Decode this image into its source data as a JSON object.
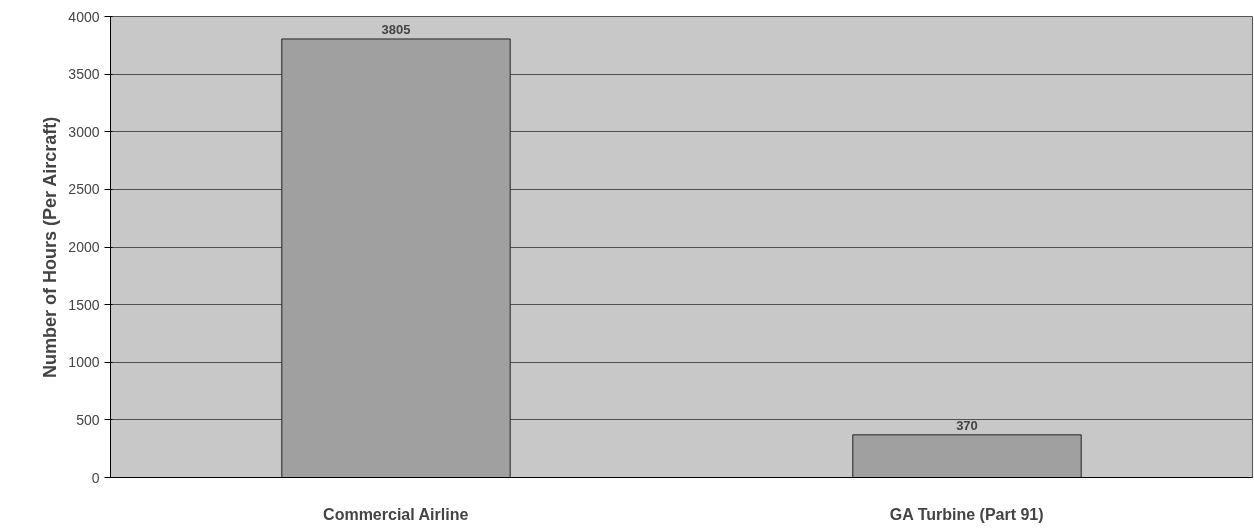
{
  "chart_data": {
    "type": "bar",
    "ylabel": "Number of Hours (Per Aircraft)",
    "categories": [
      "Commercial Airline",
      "GA Turbine (Part 91)"
    ],
    "values": [
      3805,
      370
    ],
    "color": "#a0a0a0",
    "ylim": [
      0,
      4000
    ],
    "yticks": [
      0,
      500,
      1000,
      1500,
      2000,
      2500,
      3000,
      3500,
      4000
    ],
    "grid": "y",
    "data_labels": true
  }
}
